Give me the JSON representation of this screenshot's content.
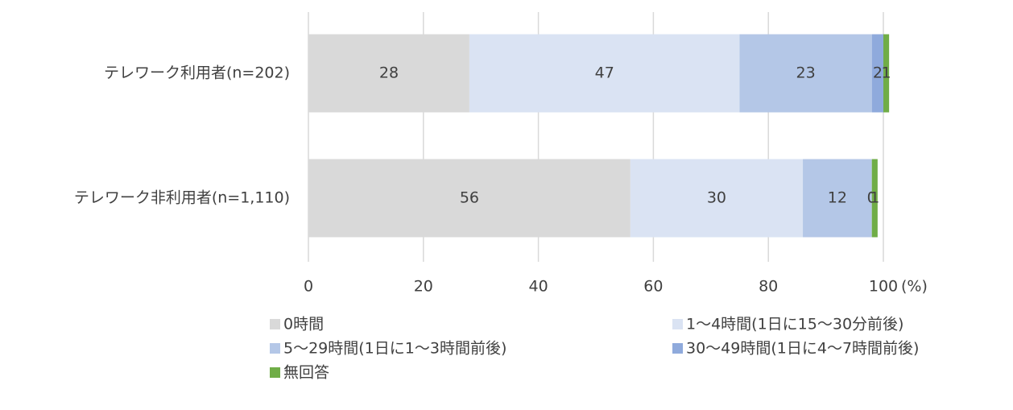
{
  "chart_data": {
    "type": "stacked-bar-horizontal",
    "categories": [
      "テレワーク利用者(n=202)",
      "テレワーク非利用者(n=1,110)"
    ],
    "series": [
      {
        "name": "0時間",
        "color": "#d9d9d9",
        "values": [
          28,
          56
        ]
      },
      {
        "name": "1～4時間(1日に15～30分前後)",
        "color": "#dae3f3",
        "values": [
          47,
          30
        ]
      },
      {
        "name": "5～29時間(1日に1～3時間前後)",
        "color": "#b4c7e7",
        "values": [
          23,
          12
        ]
      },
      {
        "name": "30～49時間(1日に4～7時間前後)",
        "color": "#8faadc",
        "values": [
          2,
          0
        ]
      },
      {
        "name": "無回答",
        "color": "#70ad47",
        "values": [
          1,
          1
        ]
      }
    ],
    "x_label": "(%)",
    "xlim": [
      0,
      100
    ],
    "xticks": [
      0,
      20,
      40,
      60,
      80,
      100
    ],
    "grid": true
  }
}
